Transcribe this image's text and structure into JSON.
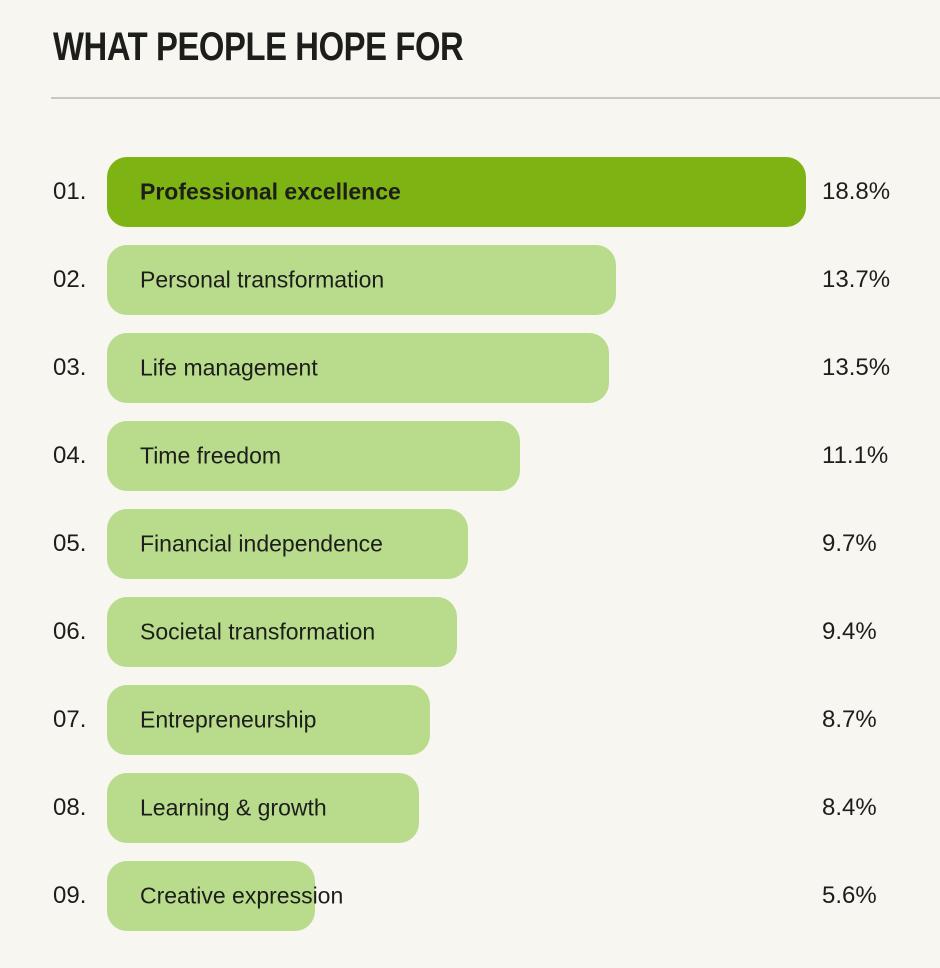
{
  "title": "WHAT PEOPLE HOPE FOR",
  "colors": {
    "background": "#f8f6f0",
    "bar_default": "#b8dc8c",
    "bar_highlight": "#7db413",
    "text": "#1d1d1b",
    "divider": "#c9c8c0"
  },
  "chart_data": {
    "type": "bar",
    "orientation": "horizontal",
    "title": "WHAT PEOPLE HOPE FOR",
    "categories": [
      "Professional excellence",
      "Personal transformation",
      "Life management",
      "Time freedom",
      "Financial independence",
      "Societal transformation",
      "Entrepreneurship",
      "Learning & growth",
      "Creative expression"
    ],
    "values": [
      18.8,
      13.7,
      13.5,
      11.1,
      9.7,
      9.4,
      8.7,
      8.4,
      5.6
    ],
    "value_suffix": "%",
    "max_value": 18.8,
    "ranks": [
      "01.",
      "02.",
      "03.",
      "04.",
      "05.",
      "06.",
      "07.",
      "08.",
      "09."
    ],
    "highlight_index": 0,
    "legend": "none",
    "grid": false,
    "bar_labels_inside": true,
    "value_labels_right_aligned_left": true
  },
  "rows": [
    {
      "rank": "01.",
      "label": "Professional excellence",
      "value": 18.8,
      "value_label": "18.8%",
      "highlight": true
    },
    {
      "rank": "02.",
      "label": "Personal transformation",
      "value": 13.7,
      "value_label": "13.7%",
      "highlight": false
    },
    {
      "rank": "03.",
      "label": "Life management",
      "value": 13.5,
      "value_label": "13.5%",
      "highlight": false
    },
    {
      "rank": "04.",
      "label": "Time freedom",
      "value": 11.1,
      "value_label": "11.1%",
      "highlight": false
    },
    {
      "rank": "05.",
      "label": "Financial independence",
      "value": 9.7,
      "value_label": "9.7%",
      "highlight": false
    },
    {
      "rank": "06.",
      "label": "Societal transformation",
      "value": 9.4,
      "value_label": "9.4%",
      "highlight": false
    },
    {
      "rank": "07.",
      "label": "Entrepreneurship",
      "value": 8.7,
      "value_label": "8.7%",
      "highlight": false
    },
    {
      "rank": "08.",
      "label": "Learning & growth",
      "value": 8.4,
      "value_label": "8.4%",
      "highlight": false
    },
    {
      "rank": "09.",
      "label": "Creative expression",
      "value": 5.6,
      "value_label": "5.6%",
      "highlight": false
    }
  ]
}
